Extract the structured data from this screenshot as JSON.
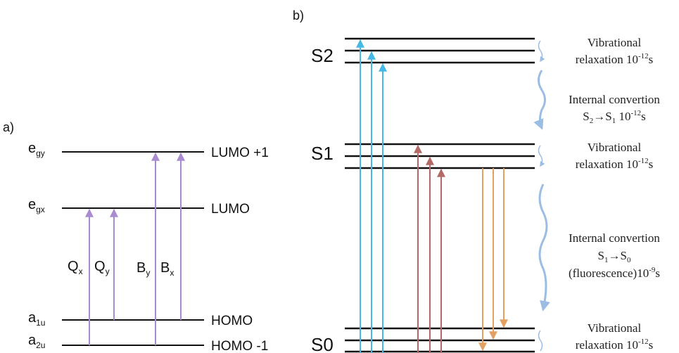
{
  "panel_a": {
    "label": "a)",
    "orbitals": [
      {
        "sym": "e",
        "sub": "gy",
        "name": "LUMO +1"
      },
      {
        "sym": "e",
        "sub": "gx",
        "name": "LUMO"
      },
      {
        "sym": "a",
        "sub": "1u",
        "name": "HOMO"
      },
      {
        "sym": "a",
        "sub": "2u",
        "name": "HOMO -1"
      }
    ],
    "transitions": [
      {
        "sym": "Q",
        "sub": "x"
      },
      {
        "sym": "Q",
        "sub": "y"
      },
      {
        "sym": "B",
        "sub": "y"
      },
      {
        "sym": "B",
        "sub": "x"
      }
    ]
  },
  "panel_b": {
    "label": "b)",
    "states": [
      "S2",
      "S1",
      "S0"
    ],
    "annotations": {
      "vib_s2": {
        "line1": "Vibrational",
        "line2": "relaxation 10",
        "sup": "-12",
        "unit": "s"
      },
      "ic_s2s1": {
        "line1": "Internal convertion",
        "line2_a": "S",
        "line2_a_sub": "2",
        "arrow": "→",
        "line2_b": "S",
        "line2_b_sub": "1",
        "time": " 10",
        "sup": "-12",
        "unit": "s"
      },
      "vib_s1": {
        "line1": "Vibrational",
        "line2": "relaxation 10",
        "sup": "-12",
        "unit": "s"
      },
      "ic_s1s0": {
        "line1": "Internal convertion",
        "line2_a": "S",
        "line2_a_sub": "1",
        "arrow": "→",
        "line2_b": "S",
        "line2_b_sub": "0",
        "line3": "(fluorescence)10",
        "sup": "-9",
        "unit": "s"
      },
      "vib_s0": {
        "line1": "Vibrational",
        "line2": "relaxation 10",
        "sup": "-12",
        "unit": "s"
      }
    }
  },
  "colors": {
    "level": "#111111",
    "purple": "#a98bd1",
    "blue": "#45b8e6",
    "red": "#b36a66",
    "orange": "#e3a060",
    "wave": "#9bbde4"
  }
}
